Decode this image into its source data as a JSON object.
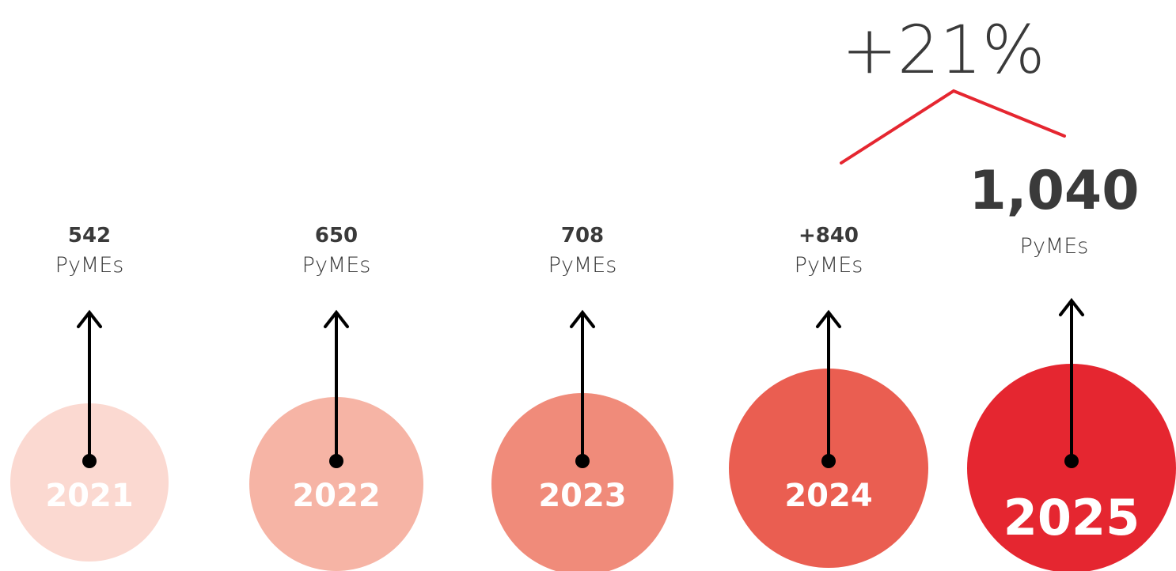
{
  "growth": "+21%",
  "items": [
    {
      "year": "2021",
      "value": "542",
      "unit": "PyMEs"
    },
    {
      "year": "2022",
      "value": "650",
      "unit": "PyMEs"
    },
    {
      "year": "2023",
      "value": "708",
      "unit": "PyMEs"
    },
    {
      "year": "2024",
      "value": "+840",
      "unit": "PyMEs"
    },
    {
      "year": "2025",
      "value": "1,040",
      "unit": "PyMEs"
    }
  ]
}
